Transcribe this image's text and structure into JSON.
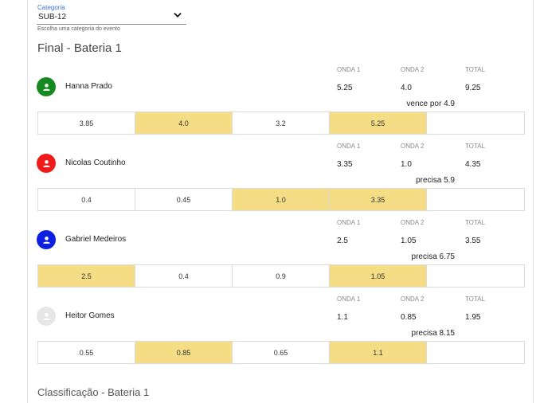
{
  "category": {
    "label": "Categoria",
    "value": "SUB-12",
    "help": "Escolha uma categoria do evento"
  },
  "heat_title": "Final - Bateria 1",
  "next_title": "Classificação - Bateria 1",
  "columns": {
    "wave1": "ONDA 1",
    "wave2": "ONDA 2",
    "total": "TOTAL"
  },
  "athletes": [
    {
      "name": "Hanna Prado",
      "avatar_color": "#14891f",
      "wave1": "5.25",
      "wave2": "4.0",
      "total": "9.25",
      "status": "vence por 4.9",
      "waves": [
        "3.85",
        "4.0",
        "3.2",
        "5.25",
        ""
      ],
      "highlighted": [
        false,
        true,
        false,
        true,
        false
      ]
    },
    {
      "name": "Nicolas Coutinho",
      "avatar_color": "#ef1a1a",
      "wave1": "3.35",
      "wave2": "1.0",
      "total": "4.35",
      "status": "precisa 5.9",
      "waves": [
        "0.4",
        "0.45",
        "1.0",
        "3.35",
        ""
      ],
      "highlighted": [
        false,
        false,
        true,
        true,
        false
      ]
    },
    {
      "name": "Gabriel Medeiros",
      "avatar_color": "#0d1fe0",
      "wave1": "2.5",
      "wave2": "1.05",
      "total": "3.55",
      "status": "precisa 6.75",
      "waves": [
        "2.5",
        "0.4",
        "0.9",
        "1.05",
        ""
      ],
      "highlighted": [
        true,
        false,
        false,
        true,
        false
      ]
    },
    {
      "name": "Heitor Gomes",
      "avatar_color": "#e6e6e6",
      "wave1": "1.1",
      "wave2": "0.85",
      "total": "1.95",
      "status": "precisa 8.15",
      "waves": [
        "0.55",
        "0.85",
        "0.65",
        "1.1",
        ""
      ],
      "highlighted": [
        false,
        true,
        false,
        true,
        false
      ]
    }
  ]
}
